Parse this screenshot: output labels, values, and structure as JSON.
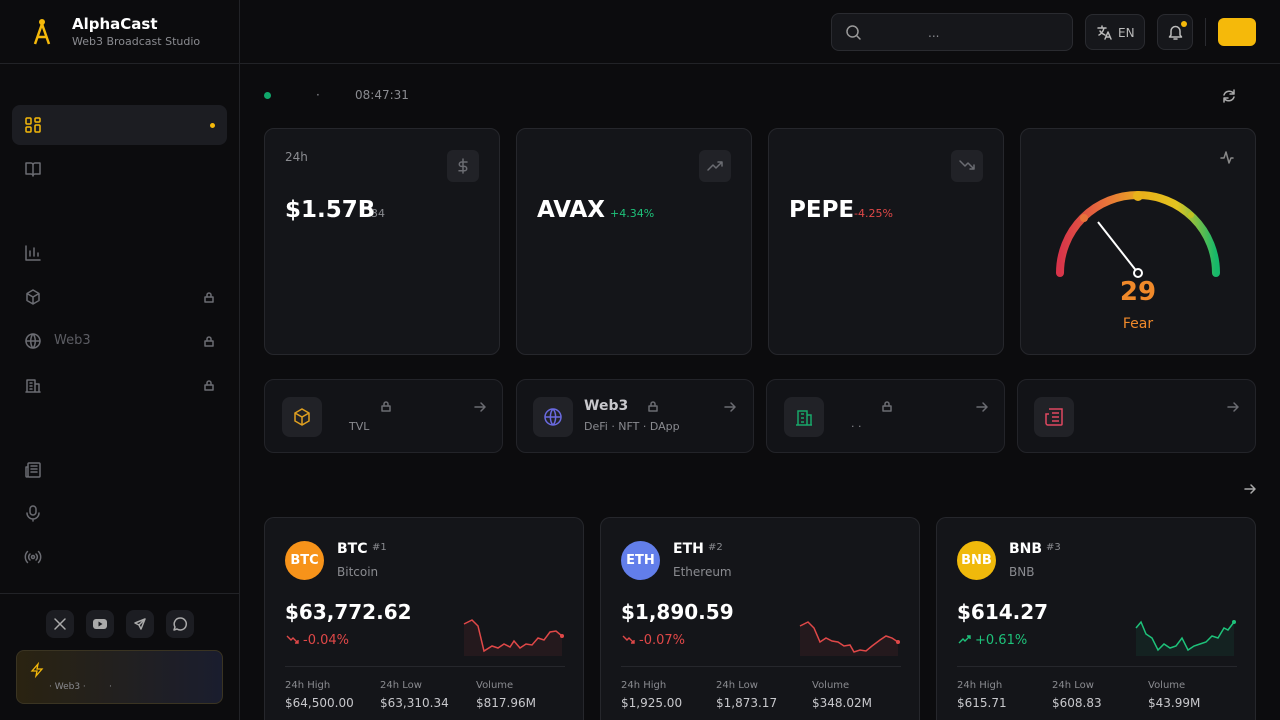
{
  "sidebar": {
    "brand": "AlphaCast",
    "tagline": "Web3 Broadcast Studio",
    "nav": [
      "Web3"
    ],
    "promo": [
      "· Web3 ·",
      "·"
    ]
  },
  "header": {
    "search_placeholder": "...",
    "language": "EN"
  },
  "status": {
    "separator": "·",
    "time": "08:47:31"
  },
  "stats": [
    {
      "label": "24h",
      "value": "$1.57B",
      "sub": "34"
    },
    {
      "value": "AVAX",
      "change": "+4.34%"
    },
    {
      "value": "PEPE",
      "change": "-4.25%"
    }
  ],
  "sentiment": {
    "value": 29,
    "label": "Fear"
  },
  "features": [
    {
      "sub": "TVL"
    },
    {
      "title": "Web3",
      "sub": "DeFi · NFT · DApp"
    },
    {
      "sub": "·   ·"
    }
  ],
  "coins": [
    {
      "symbol": "BTC",
      "rank": "#1",
      "name": "Bitcoin",
      "price": "$63,772.62",
      "change": "-0.04%",
      "stats": [
        {
          "label": "24h High",
          "value": "$64,500.00"
        },
        {
          "label": "24h Low",
          "value": "$63,310.34"
        },
        {
          "label": "Volume",
          "value": "$817.96M"
        }
      ]
    },
    {
      "symbol": "ETH",
      "rank": "#2",
      "name": "Ethereum",
      "price": "$1,890.59",
      "change": "-0.07%",
      "stats": [
        {
          "label": "24h High",
          "value": "$1,925.00"
        },
        {
          "label": "24h Low",
          "value": "$1,873.17"
        },
        {
          "label": "Volume",
          "value": "$348.02M"
        }
      ]
    },
    {
      "symbol": "BNB",
      "rank": "#3",
      "name": "BNB",
      "price": "$614.27",
      "change": "+0.61%",
      "stats": [
        {
          "label": "24h High",
          "value": "$615.71"
        },
        {
          "label": "24h Low",
          "value": "$608.83"
        },
        {
          "label": "Volume",
          "value": "$43.99M"
        }
      ]
    }
  ]
}
